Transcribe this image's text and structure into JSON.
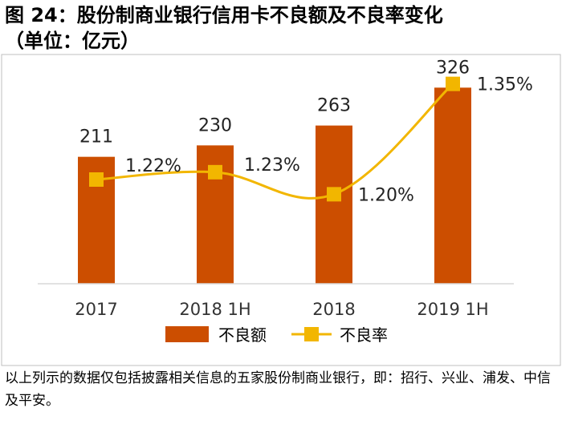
{
  "title_line_1": "图 24：股份制商业银行信用卡不良额及不良率变化",
  "title_line_2": "（单位：亿元）",
  "footnote": "以上列示的数据仅包括披露相关信息的五家股份制商业银行，即：招行、兴业、浦发、中信及平安。",
  "colors": {
    "bar": "#CC4E00",
    "line": "#F2B600",
    "axis": "#d9d9d9",
    "border": "#bfbfbf"
  },
  "chart_data": {
    "type": "bar",
    "categories": [
      "2017",
      "2018 1H",
      "2018",
      "2019 1H"
    ],
    "series": [
      {
        "name": "不良额",
        "type": "bar",
        "values": [
          211,
          230,
          263,
          326
        ],
        "labels": [
          "211",
          "230",
          "263",
          "326"
        ]
      },
      {
        "name": "不良率",
        "type": "line",
        "values": [
          1.22,
          1.23,
          1.2,
          1.35
        ],
        "labels": [
          "1.22%",
          "1.23%",
          "1.20%",
          "1.35%"
        ]
      }
    ],
    "legend_position": "bottom",
    "grid": false
  }
}
